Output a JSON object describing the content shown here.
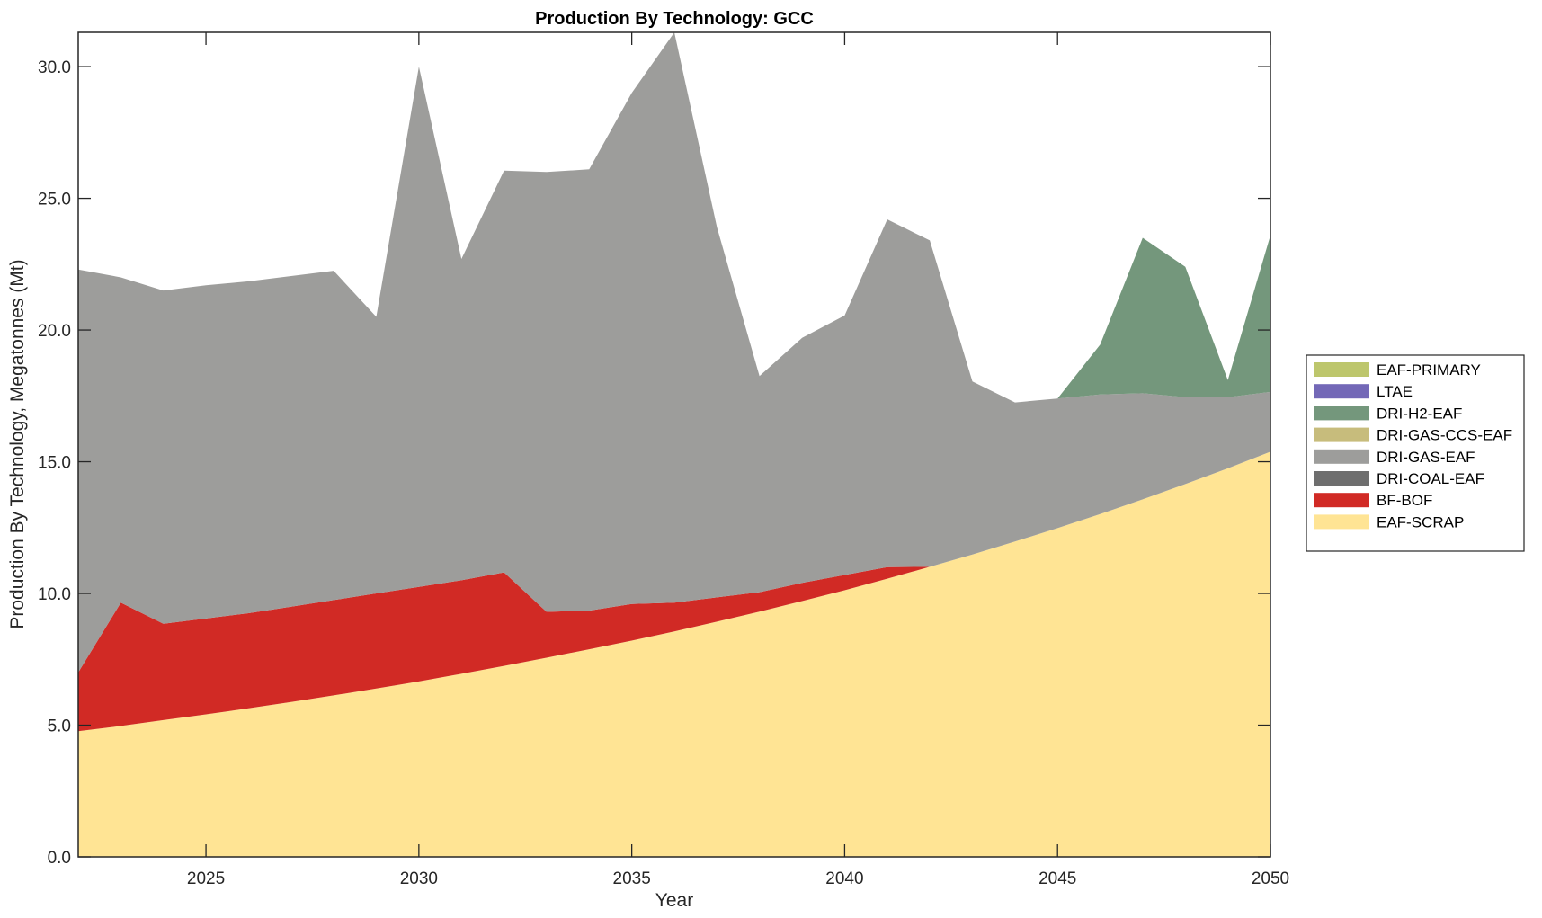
{
  "chart_data": {
    "type": "area",
    "stacked": true,
    "title": "Production By Technology: GCC",
    "xlabel": "Year",
    "ylabel": "Production By Technology, Megatonnes (Mt)",
    "xlim": [
      2022,
      2050
    ],
    "ylim": [
      0,
      31.3
    ],
    "xticks": [
      2025,
      2030,
      2035,
      2040,
      2045,
      2050
    ],
    "xtick_labels": [
      "2025",
      "2030",
      "2035",
      "2040",
      "2045",
      "2050"
    ],
    "yticks": [
      0,
      5,
      10,
      15,
      20,
      25,
      30
    ],
    "ytick_labels": [
      "0.0",
      "5.0",
      "10.0",
      "15.0",
      "20.0",
      "25.0",
      "30.0"
    ],
    "grid": false,
    "legend_position": "right",
    "x": [
      2022,
      2023,
      2024,
      2025,
      2026,
      2027,
      2028,
      2029,
      2030,
      2031,
      2032,
      2033,
      2034,
      2035,
      2036,
      2037,
      2038,
      2039,
      2040,
      2041,
      2042,
      2043,
      2044,
      2045,
      2046,
      2047,
      2048,
      2049,
      2050
    ],
    "series": [
      {
        "name": "EAF-SCRAP",
        "color": "#FFE494",
        "values": [
          4.77,
          4.97,
          5.19,
          5.41,
          5.64,
          5.88,
          6.13,
          6.39,
          6.66,
          6.95,
          7.25,
          7.56,
          7.88,
          8.21,
          8.56,
          8.93,
          9.31,
          9.71,
          10.12,
          10.56,
          11.01,
          11.48,
          11.97,
          12.48,
          13.01,
          13.57,
          14.15,
          14.75,
          15.38
        ]
      },
      {
        "name": "BF-BOF",
        "color": "#D12A25",
        "values": [
          2.23,
          4.68,
          3.66,
          3.64,
          3.61,
          3.62,
          3.62,
          3.61,
          3.59,
          3.55,
          3.55,
          1.74,
          1.47,
          1.39,
          1.09,
          0.92,
          0.74,
          0.69,
          0.58,
          0.44,
          0,
          0,
          0,
          0,
          0,
          0,
          0,
          0,
          0
        ]
      },
      {
        "name": "DRI-COAL-EAF",
        "color": "#6E6E6E",
        "values": [
          0,
          0,
          0,
          0,
          0,
          0,
          0,
          0,
          0,
          0,
          0,
          0,
          0,
          0,
          0,
          0,
          0,
          0,
          0,
          0,
          0,
          0,
          0,
          0,
          0,
          0,
          0,
          0,
          0
        ]
      },
      {
        "name": "DRI-GAS-EAF",
        "color": "#9D9D9B",
        "values": [
          15.3,
          12.35,
          12.65,
          12.65,
          12.6,
          12.55,
          12.5,
          10.5,
          19.75,
          12.2,
          15.25,
          16.7,
          16.75,
          19.4,
          21.65,
          14.05,
          8.2,
          9.3,
          9.85,
          13.2,
          12.39,
          6.57,
          5.28,
          4.92,
          4.54,
          4.03,
          3.3,
          2.7,
          2.27
        ]
      },
      {
        "name": "DRI-GAS-CCS-EAF",
        "color": "#C7BC7C",
        "values": [
          0,
          0,
          0,
          0,
          0,
          0,
          0,
          0,
          0,
          0,
          0,
          0,
          0,
          0,
          0,
          0,
          0,
          0,
          0,
          0,
          0,
          0,
          0,
          0,
          0,
          0,
          0,
          0,
          0
        ]
      },
      {
        "name": "DRI-H2-EAF",
        "color": "#74977C",
        "values": [
          0,
          0,
          0,
          0,
          0,
          0,
          0,
          0,
          0,
          0,
          0,
          0,
          0,
          0,
          0,
          0,
          0,
          0,
          0,
          0,
          0,
          0,
          0,
          0,
          1.9,
          5.9,
          4.95,
          0.65,
          5.95
        ]
      },
      {
        "name": "LTAE",
        "color": "#7368B7",
        "values": [
          0,
          0,
          0,
          0,
          0,
          0,
          0,
          0,
          0,
          0,
          0,
          0,
          0,
          0,
          0,
          0,
          0,
          0,
          0,
          0,
          0,
          0,
          0,
          0,
          0,
          0,
          0,
          0,
          0
        ]
      },
      {
        "name": "EAF-PRIMARY",
        "color": "#BDC66C",
        "values": [
          0,
          0,
          0,
          0,
          0,
          0,
          0,
          0,
          0,
          0,
          0,
          0,
          0,
          0,
          0,
          0,
          0,
          0,
          0,
          0,
          0,
          0,
          0,
          0,
          0,
          0,
          0,
          0,
          0
        ]
      }
    ],
    "legend": [
      "EAF-PRIMARY",
      "LTAE",
      "DRI-H2-EAF",
      "DRI-GAS-CCS-EAF",
      "DRI-GAS-EAF",
      "DRI-COAL-EAF",
      "BF-BOF",
      "EAF-SCRAP"
    ]
  }
}
